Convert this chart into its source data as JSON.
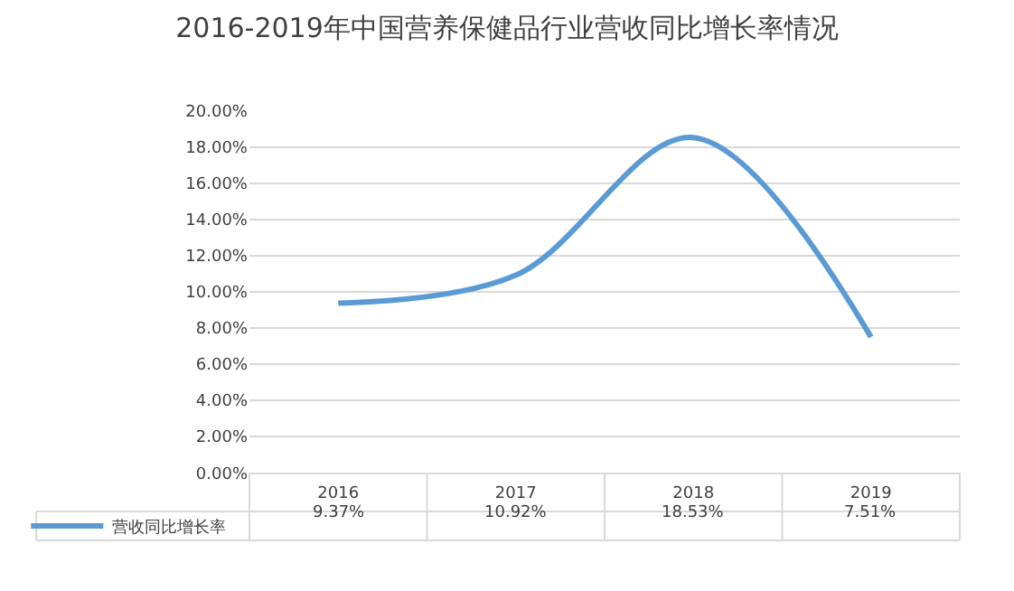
{
  "chart_data": {
    "type": "line",
    "title": "2016-2019年中国营养保健品行业营收同比增长率情况",
    "categories": [
      "2016",
      "2017",
      "2018",
      "2019"
    ],
    "series": [
      {
        "name": "营收同比增长率",
        "color": "#5b9bd5",
        "values": [
          9.37,
          10.92,
          18.53,
          7.51
        ],
        "value_labels": [
          "9.37%",
          "10.92%",
          "18.53%",
          "7.51%"
        ]
      }
    ],
    "ylim": [
      0,
      20
    ],
    "yticks": [
      {
        "value": 0,
        "label": "0.00%"
      },
      {
        "value": 2,
        "label": "2.00%"
      },
      {
        "value": 4,
        "label": "4.00%"
      },
      {
        "value": 6,
        "label": "6.00%"
      },
      {
        "value": 8,
        "label": "8.00%"
      },
      {
        "value": 10,
        "label": "10.00%"
      },
      {
        "value": 12,
        "label": "12.00%"
      },
      {
        "value": 14,
        "label": "14.00%"
      },
      {
        "value": 16,
        "label": "16.00%"
      },
      {
        "value": 18,
        "label": "18.00%"
      },
      {
        "value": 20,
        "label": "20.00%"
      }
    ],
    "grid": "y",
    "legend": "bottom left",
    "marker": "none",
    "line_style": "solid"
  }
}
